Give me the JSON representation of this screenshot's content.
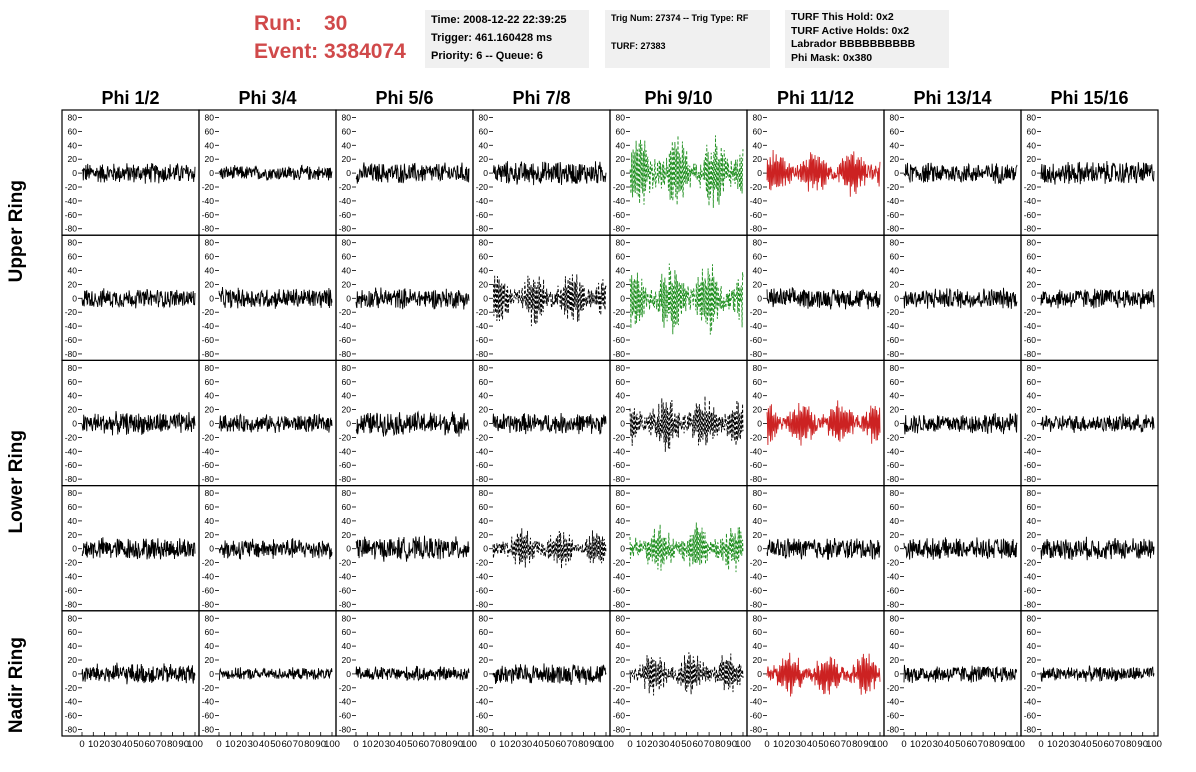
{
  "header": {
    "run_label": "Run:",
    "run_value": "30",
    "event_label": "Event:",
    "event_value": "3384074"
  },
  "info_time": {
    "time": "Time: 2008-12-22 22:39:25",
    "trigger": "Trigger: 461.160428 ms",
    "priority": "Priority: 6 -- Queue: 6"
  },
  "info_trig": {
    "trig": "Trig Num: 27374 -- Trig Type: RF",
    "turf": "TURF: 27383"
  },
  "info_turf": {
    "hold": "TURF This Hold: 0x2",
    "active": "TURF Active Holds: 0x2",
    "labrador": "Labrador BBBBBBBBBB",
    "phimask": "Phi Mask: 0x380"
  },
  "row_labels": [
    "Upper Ring",
    "Lower Ring",
    "Nadir Ring"
  ],
  "chart_data": {
    "type": "line",
    "columns": [
      "Phi 1/2",
      "Phi 3/4",
      "Phi 5/6",
      "Phi 7/8",
      "Phi 9/10",
      "Phi 11/12",
      "Phi 13/14",
      "Phi 15/16"
    ],
    "rows": 5,
    "xlim": [
      0,
      100
    ],
    "ylim": [
      -85,
      85
    ],
    "x_ticks": [
      "0",
      "10",
      "20",
      "30",
      "40",
      "50",
      "60",
      "70",
      "80",
      "90",
      "100"
    ],
    "y_ticks": [
      "80",
      "60",
      "40",
      "20",
      "0",
      "-20",
      "-40",
      "-60",
      "-80"
    ],
    "series_colors": {
      "normal": "#000000",
      "dashed": "#000000",
      "green": "#1f8f1f",
      "red": "#cc2222"
    },
    "panel_styles": [
      [
        "normal",
        "normal",
        "normal",
        "normal",
        "green",
        "red",
        "normal",
        "normal"
      ],
      [
        "normal",
        "normal",
        "normal",
        "dashed",
        "green",
        "normal",
        "normal",
        "normal"
      ],
      [
        "normal",
        "normal",
        "normal",
        "normal",
        "dashed",
        "red",
        "normal",
        "normal"
      ],
      [
        "normal",
        "normal",
        "normal",
        "dashed",
        "green",
        "normal",
        "normal",
        "normal"
      ],
      [
        "normal",
        "normal",
        "normal",
        "normal",
        "dashed",
        "red",
        "normal",
        "normal"
      ]
    ],
    "panel_amplitude": [
      [
        14,
        10,
        14,
        16,
        40,
        26,
        14,
        16
      ],
      [
        13,
        14,
        14,
        30,
        40,
        14,
        14,
        14
      ],
      [
        15,
        12,
        16,
        14,
        30,
        26,
        14,
        12
      ],
      [
        15,
        14,
        16,
        22,
        28,
        15,
        14,
        15
      ],
      [
        14,
        8,
        10,
        14,
        24,
        24,
        12,
        10
      ]
    ]
  }
}
